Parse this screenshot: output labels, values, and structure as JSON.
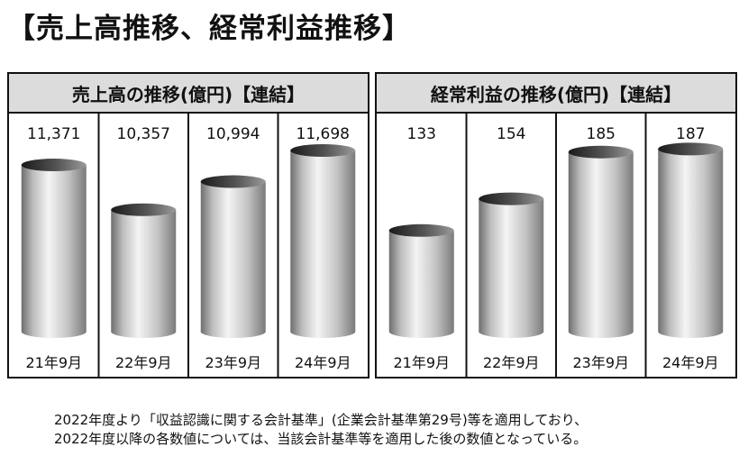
{
  "title": "【売上高推移、経常利益推移】",
  "footnote": {
    "line1": "2022年度より「収益認識に関する会計基準」(企業会計基準第29号)等を適用しており、",
    "line2": "2022年度以降の各数値については、当該会計基準等を適用した後の数値となっている。"
  },
  "chart_data": [
    {
      "type": "bar",
      "title": "売上高の推移(億円)【連結】",
      "categories": [
        "21年9月",
        "22年9月",
        "23年9月",
        "24年9月"
      ],
      "value_labels": [
        "11,371",
        "10,357",
        "10,994",
        "11,698"
      ],
      "values": [
        11371,
        10357,
        10994,
        11698
      ],
      "ylim": [
        7600,
        11800
      ],
      "grid": false,
      "style": "3d-cylinder"
    },
    {
      "type": "bar",
      "title": "経常利益の推移(億円)【連結】",
      "categories": [
        "21年9月",
        "22年9月",
        "23年9月",
        "24年9月"
      ],
      "value_labels": [
        "133",
        "154",
        "185",
        "187"
      ],
      "values": [
        133,
        154,
        185,
        187
      ],
      "ylim": [
        66,
        189
      ],
      "grid": false,
      "style": "3d-cylinder"
    }
  ]
}
